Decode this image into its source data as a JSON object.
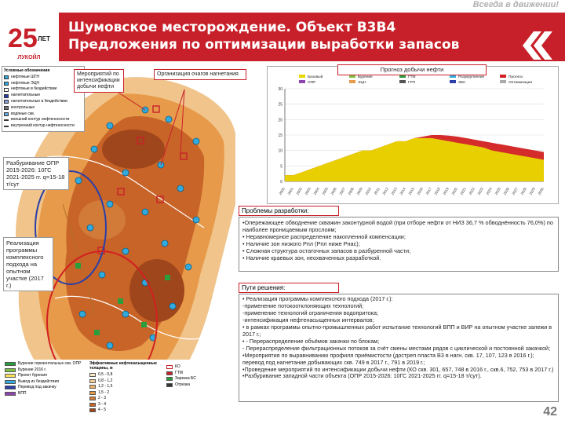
{
  "slogan": "Всегда в движении!",
  "header": {
    "title_line1": "Шумовское месторождение. Объект В3В4",
    "title_line2": "Предложения по оптимизации выработки запасов"
  },
  "logo": {
    "number": "25",
    "subtitle": "ЛЕТ",
    "company": "ЛУКОЙЛ"
  },
  "colors": {
    "brand_red": "#c8202a",
    "map_orange": "#e79a4a",
    "well_cyan": "#33aadd"
  },
  "legend_top": {
    "title": "Условные обозначения",
    "items": [
      "нефтяные ШГН",
      "нефтяные ЭЦН",
      "нефтяные в бездействии",
      "нагнетательные",
      "нагнетательные в бездействии",
      "контрольные",
      "водяные скв.",
      "внешний контур нефтеносности",
      "внутренний контур нефтеносности"
    ]
  },
  "callouts": {
    "intensification": "Мероприятий по интенсификации добычи нефти",
    "injection": "Организация очагов нагнетания"
  },
  "side_notes": {
    "drilling": "Разбуривание ОПР 2015-2026: 10ГС 2021-2025 гг. q=15-18 т/сут",
    "complex": "Реализация программы комплексного подхода на опытном участке (2017 г.)"
  },
  "chart_data": {
    "type": "area",
    "title": "Прогноз добычи нефти",
    "x": [
      "2000",
      "2001",
      "2002",
      "2003",
      "2004",
      "2005",
      "2006",
      "2007",
      "2008",
      "2009",
      "2010",
      "2011",
      "2012",
      "2013",
      "2014",
      "2015",
      "2016",
      "2017",
      "2018",
      "2019",
      "2020",
      "2021",
      "2022",
      "2023",
      "2024",
      "2025",
      "2026",
      "2027",
      "2028",
      "2029",
      "2030"
    ],
    "ylim": [
      0,
      30
    ],
    "yticks": [
      "0",
      "5",
      "10",
      "15",
      "20",
      "25",
      "30"
    ],
    "legend": [
      "Базовый",
      "Бурение",
      "ГТМ",
      "Разукрупнение",
      "Прогноз",
      "ОПР",
      "ЭЦН",
      "ГРП",
      "ЗБС",
      "Оптимизация"
    ],
    "series": [
      {
        "name": "Базовый",
        "color": "#e8d800",
        "values": [
          2,
          2,
          3,
          4,
          5,
          6,
          7,
          8,
          9,
          10,
          10,
          11,
          12,
          13,
          13,
          14,
          14,
          14,
          13.5,
          13,
          12.5,
          12,
          11.5,
          11,
          10,
          9.5,
          9,
          8.5,
          8,
          7.5,
          7
        ]
      },
      {
        "name": "Прогноз",
        "color": "#d22020",
        "values": [
          2,
          2,
          3,
          4,
          5,
          6,
          7,
          8,
          9,
          10,
          10,
          11,
          12,
          13,
          13,
          14,
          14.5,
          15,
          15,
          14.8,
          14.5,
          14,
          13.5,
          13,
          12.5,
          12,
          11.5,
          11,
          10.5,
          10,
          9.5
        ]
      }
    ]
  },
  "problems": {
    "header": "Проблемы разработки:",
    "items": [
      "•Опережающее обводнение скважин законтурной водой (при отборе нефти от НИЗ 36,7 % обводнённость 76,0%) по наиболее проницаемым прослоям;",
      "• Неравномерное распределение накопленной компенсации;",
      "• Наличие зон низкого Рпл (Рпл ниже Рнас);",
      "• Сложная структура остаточных запасов в разбуренной части;",
      "• Наличие краевых зон, неохваченных разработкой."
    ]
  },
  "solutions": {
    "header": "Пути решения:",
    "items": [
      "• Реализация программы комплексного подхода (2017 г.):",
      "-применение потокоотклоняющих технологий;",
      "-применение технологий ограничения водопритока;",
      "-интенсификация нефтенасыщенных интервалов;",
      "• в рамках программы опытно-промышленных работ испытание технологий ВПП и ВИР на опытном участке залежи в 2017 г.;",
      "• - Перераспределение объёмов закачки по блокам;",
      "   - Перераспределение фильтрационных потоков за счёт смены местами рядов с циклической и постоянной закачкой;",
      "•Мероприятия по выравниванию профиля приёмистости (достреп пласта В3 в нагн. скв. 17, 107, 123 в 2016 г.); перевод под нагнетание добывающих скв. 749 в 2017 г., 791 в 2019 г.;",
      "•Проведение мероприятий по интенсификации добычи нефти (КО скв. 301, 657, 748 в 2016 г., скв.6, 752, 753 в 2017 г.)",
      "•Разбуривание западной части объекта (ОПР 2015-2026: 10ГС 2021-2025 гг. q=15-18 т/сут)."
    ]
  },
  "legend_bottom": {
    "col1": [
      "Бурение горизонтальных скв. ОПР",
      "Бурение 2016 г.",
      "Проект бурения",
      "Вывод из бездействия",
      "Перевод под закачку",
      "ВПП"
    ],
    "col2_title": "Эффективные нефтенасыщенные толщины, м",
    "col2": [
      "0,5 - 0,8",
      "0,8 - 1,2",
      "1,2 - 1,5",
      "1,5 - 2",
      "2 - 3",
      "3 - 4",
      "4 - 5"
    ],
    "col3": [
      "КО",
      "ГТМ",
      "Зарезка БС",
      "Отрезка"
    ]
  },
  "page_number": "42"
}
